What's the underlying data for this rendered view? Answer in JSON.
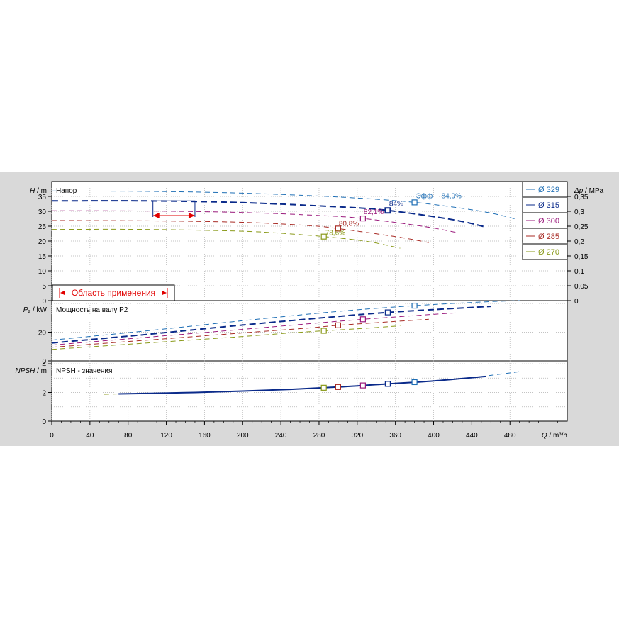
{
  "chart_data": {
    "type": "line",
    "x_axis": {
      "label_var": "Q",
      "label_unit": "/ m³/h",
      "range": [
        0,
        540
      ],
      "ticks": [
        "0",
        "40",
        "80",
        "120",
        "160",
        "200",
        "240",
        "280",
        "320",
        "360",
        "400",
        "440",
        "480"
      ]
    },
    "legend": {
      "placement": "top-right",
      "entries": [
        {
          "label": "Ø 329",
          "color": "#1f6fb5"
        },
        {
          "label": "Ø 315",
          "color": "#0a2a8a"
        },
        {
          "label": "Ø 300",
          "color": "#9b1b7d"
        },
        {
          "label": "Ø 285",
          "color": "#a82b25"
        },
        {
          "label": "Ø 270",
          "color": "#8a9a1a"
        }
      ]
    },
    "head_panel": {
      "title": "Напор",
      "y_label_var": "H",
      "y_label_unit": "/ m",
      "y_range": [
        0,
        40
      ],
      "y_ticks": [
        "0",
        "5",
        "10",
        "15",
        "20",
        "25",
        "30",
        "35"
      ],
      "y2_label_var": "Δp",
      "y2_label_unit": "/ MPa",
      "y2_ticks": [
        "0",
        "0,05",
        "0,1",
        "0,15",
        "0,2",
        "0,25",
        "0,3",
        "0,35"
      ],
      "application_range_label": "Область применения",
      "application_range_q": [
        106,
        150
      ],
      "efficiency_prefix": "Эфф",
      "series": [
        {
          "name": "Ø 329",
          "color": "#1f6fb5",
          "width": 1,
          "x": [
            0,
            100,
            200,
            300,
            380,
            450,
            485
          ],
          "y": [
            36.8,
            36.7,
            36.1,
            34.8,
            33.0,
            30.0,
            27.5
          ]
        },
        {
          "name": "Ø 315",
          "color": "#0a2a8a",
          "width": 2,
          "x": [
            0,
            100,
            200,
            300,
            352,
            420,
            455
          ],
          "y": [
            33.5,
            33.5,
            32.9,
            31.5,
            30.3,
            27.2,
            24.7
          ]
        },
        {
          "name": "Ø 300",
          "color": "#9b1b7d",
          "width": 1,
          "x": [
            0,
            100,
            200,
            280,
            326,
            390,
            425
          ],
          "y": [
            30.2,
            30.1,
            29.6,
            28.6,
            27.6,
            24.9,
            22.8
          ]
        },
        {
          "name": "Ø 285",
          "color": "#a82b25",
          "width": 1,
          "x": [
            0,
            100,
            200,
            270,
            300,
            360,
            395
          ],
          "y": [
            26.9,
            26.8,
            26.3,
            25.2,
            24.2,
            21.5,
            19.5
          ]
        },
        {
          "name": "Ø 270",
          "color": "#8a9a1a",
          "width": 1,
          "x": [
            0,
            100,
            200,
            250,
            285,
            330,
            365
          ],
          "y": [
            23.9,
            23.9,
            23.3,
            22.4,
            21.5,
            19.9,
            17.6
          ]
        }
      ],
      "efficiency_points": [
        {
          "q": 380,
          "h": 33.0,
          "label": "84,9%",
          "color": "#1f6fb5"
        },
        {
          "q": 352,
          "h": 30.3,
          "label": "84%",
          "color": "#0a2a8a"
        },
        {
          "q": 326,
          "h": 27.6,
          "label": "82,1%",
          "color": "#9b1b7d"
        },
        {
          "q": 300,
          "h": 24.2,
          "label": "80,8%",
          "color": "#a82b25"
        },
        {
          "q": 285,
          "h": 21.5,
          "label": "78,6%",
          "color": "#8a9a1a"
        }
      ]
    },
    "power_panel": {
      "title": "Мощность на валу P2",
      "y_label_var": "P₂",
      "y_label_unit": "/ kW",
      "y_range": [
        0,
        42
      ],
      "y_ticks": [
        "0",
        "20"
      ],
      "series": [
        {
          "name": "Ø 329",
          "color": "#1f6fb5",
          "width": 1,
          "x": [
            0,
            100,
            200,
            300,
            380,
            450,
            490
          ],
          "y": [
            14.5,
            21.0,
            28.0,
            34.5,
            38.5,
            41.0,
            42.0
          ]
        },
        {
          "name": "Ø 315",
          "color": "#0a2a8a",
          "width": 2,
          "x": [
            0,
            100,
            200,
            300,
            352,
            420,
            460
          ],
          "y": [
            12.5,
            18.5,
            25.0,
            31.0,
            33.8,
            36.5,
            38.0
          ]
        },
        {
          "name": "Ø 300",
          "color": "#9b1b7d",
          "width": 1,
          "x": [
            0,
            100,
            200,
            280,
            326,
            390,
            425
          ],
          "y": [
            11.0,
            16.5,
            22.0,
            26.5,
            29.0,
            32.0,
            33.5
          ]
        },
        {
          "name": "Ø 285",
          "color": "#a82b25",
          "width": 1,
          "x": [
            0,
            100,
            200,
            270,
            300,
            360,
            395
          ],
          "y": [
            9.5,
            14.5,
            19.5,
            23.0,
            24.8,
            27.5,
            29.0
          ]
        },
        {
          "name": "Ø 270",
          "color": "#8a9a1a",
          "width": 1,
          "x": [
            0,
            100,
            200,
            250,
            285,
            330,
            365
          ],
          "y": [
            8.0,
            12.5,
            17.0,
            19.5,
            21.0,
            22.8,
            24.5
          ]
        }
      ],
      "points": [
        {
          "q": 380,
          "p": 38.5,
          "color": "#1f6fb5"
        },
        {
          "q": 352,
          "p": 33.8,
          "color": "#0a2a8a"
        },
        {
          "q": 326,
          "p": 29.0,
          "color": "#9b1b7d"
        },
        {
          "q": 300,
          "p": 24.8,
          "color": "#a82b25"
        },
        {
          "q": 285,
          "p": 21.0,
          "color": "#8a9a1a"
        }
      ]
    },
    "npsh_panel": {
      "title": "NPSH - значения",
      "y_label_var": "NPSH",
      "y_label_unit": "/ m",
      "y_range": [
        0,
        4.2
      ],
      "y_ticks": [
        "0",
        "2",
        "4"
      ],
      "series": [
        {
          "name": "Ø 329",
          "color": "#1f6fb5",
          "width": 1,
          "x": [
            440,
            470,
            490
          ],
          "y": [
            3.02,
            3.28,
            3.45
          ]
        },
        {
          "name": "Ø 315",
          "color": "#0a2a8a",
          "width": 2,
          "x": [
            70,
            150,
            200,
            250,
            300,
            352,
            400,
            455
          ],
          "y": [
            1.9,
            2.0,
            2.1,
            2.22,
            2.38,
            2.6,
            2.8,
            3.12
          ]
        },
        {
          "name": "Ø 270",
          "color": "#8a9a1a",
          "width": 1,
          "x": [
            55,
            70
          ],
          "y": [
            1.88,
            1.9
          ]
        }
      ],
      "points": [
        {
          "q": 380,
          "n": 2.72,
          "color": "#1f6fb5"
        },
        {
          "q": 352,
          "n": 2.6,
          "color": "#0a2a8a"
        },
        {
          "q": 326,
          "n": 2.49,
          "color": "#9b1b7d"
        },
        {
          "q": 300,
          "n": 2.38,
          "color": "#a82b25"
        },
        {
          "q": 285,
          "n": 2.33,
          "color": "#8a9a1a"
        }
      ]
    }
  }
}
